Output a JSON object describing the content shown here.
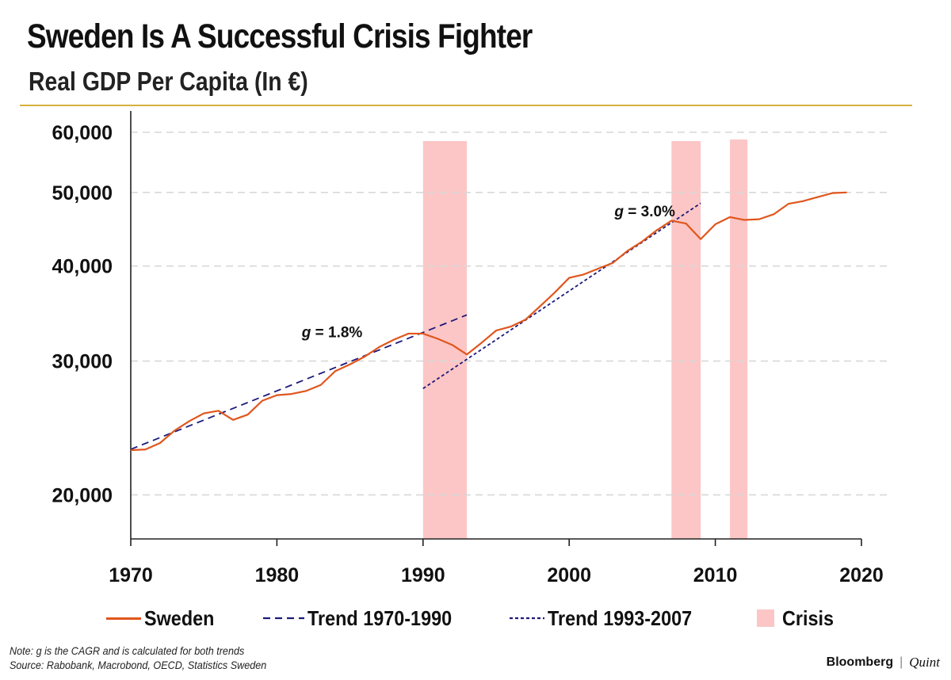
{
  "header": {
    "title": "Sweden Is A Successful Crisis Fighter",
    "subtitle": "Real GDP Per Capita (In €)"
  },
  "chart_data": {
    "type": "line",
    "title": "Sweden Is A Successful Crisis Fighter",
    "subtitle": "Real GDP Per Capita (In €)",
    "y_scale": "log",
    "ylim": [
      17500,
      64000
    ],
    "xlim": [
      1970,
      2020
    ],
    "y_ticks": [
      20000,
      30000,
      40000,
      50000,
      60000
    ],
    "y_tick_labels": [
      "20,000",
      "30,000",
      "40,000",
      "50,000",
      "60,000"
    ],
    "x_ticks": [
      1970,
      1980,
      1990,
      2000,
      2010,
      2020
    ],
    "x_tick_labels": [
      "1970",
      "1980",
      "1990",
      "2000",
      "2010",
      "2020"
    ],
    "grid": "horizontal dashed",
    "legend_position": "bottom",
    "colors": {
      "sweden": "#e0561c",
      "trend": "#1c1a7a",
      "crisis": "#fcc6c6",
      "accent_rule": "#d7b23c"
    },
    "series": [
      {
        "name": "Sweden",
        "style": "solid",
        "x": [
          1970,
          1971,
          1972,
          1973,
          1974,
          1975,
          1976,
          1977,
          1978,
          1979,
          1980,
          1981,
          1982,
          1983,
          1984,
          1985,
          1986,
          1987,
          1988,
          1989,
          1990,
          1991,
          1992,
          1993,
          1994,
          1995,
          1996,
          1997,
          1998,
          1999,
          2000,
          2001,
          2002,
          2003,
          2004,
          2005,
          2006,
          2007,
          2008,
          2009,
          2010,
          2011,
          2012,
          2013,
          2014,
          2015,
          2016,
          2017,
          2018,
          2019
        ],
        "values": [
          22900,
          22950,
          23400,
          24300,
          25000,
          25600,
          25800,
          25100,
          25500,
          26600,
          27050,
          27150,
          27400,
          27900,
          29100,
          29700,
          30400,
          31300,
          32000,
          32600,
          32600,
          32100,
          31500,
          30600,
          31700,
          32900,
          33300,
          34000,
          35400,
          36900,
          38600,
          39000,
          39700,
          40400,
          41900,
          43100,
          44600,
          45900,
          45500,
          43400,
          45400,
          46400,
          46000,
          46100,
          46800,
          48300,
          48700,
          49300,
          49900,
          50000
        ]
      },
      {
        "name": "Trend 1970-1990",
        "style": "dashed",
        "x": [
          1970,
          1993
        ],
        "values": [
          22960,
          34500
        ]
      },
      {
        "name": "Trend 1993-2007",
        "style": "dotted",
        "x": [
          1990,
          2009
        ],
        "values": [
          27600,
          48400
        ]
      },
      {
        "name": "Crisis",
        "style": "band",
        "bands": [
          [
            1990,
            1993
          ],
          [
            2007,
            2009
          ],
          [
            2011,
            2012.2
          ]
        ]
      }
    ],
    "annotations": [
      {
        "text": "= 1.8%",
        "prefix": "g",
        "x": 1981.7,
        "y": 32250
      },
      {
        "text": "= 3.0%",
        "prefix": "g",
        "x": 2003.1,
        "y": 46500
      }
    ]
  },
  "legend": {
    "sweden": "Sweden",
    "trend_1970_1990": "Trend 1970-1990",
    "trend_1993_2007": "Trend 1993-2007",
    "crisis": "Crisis"
  },
  "footer": {
    "note_line1": "Note: g is the CAGR and is calculated for both trends",
    "note_line2": "Source: Rabobank, Macrobond, OECD, Statistics Sweden",
    "brand_left": "Bloomberg",
    "brand_sep": "|",
    "brand_right": "Quint"
  }
}
